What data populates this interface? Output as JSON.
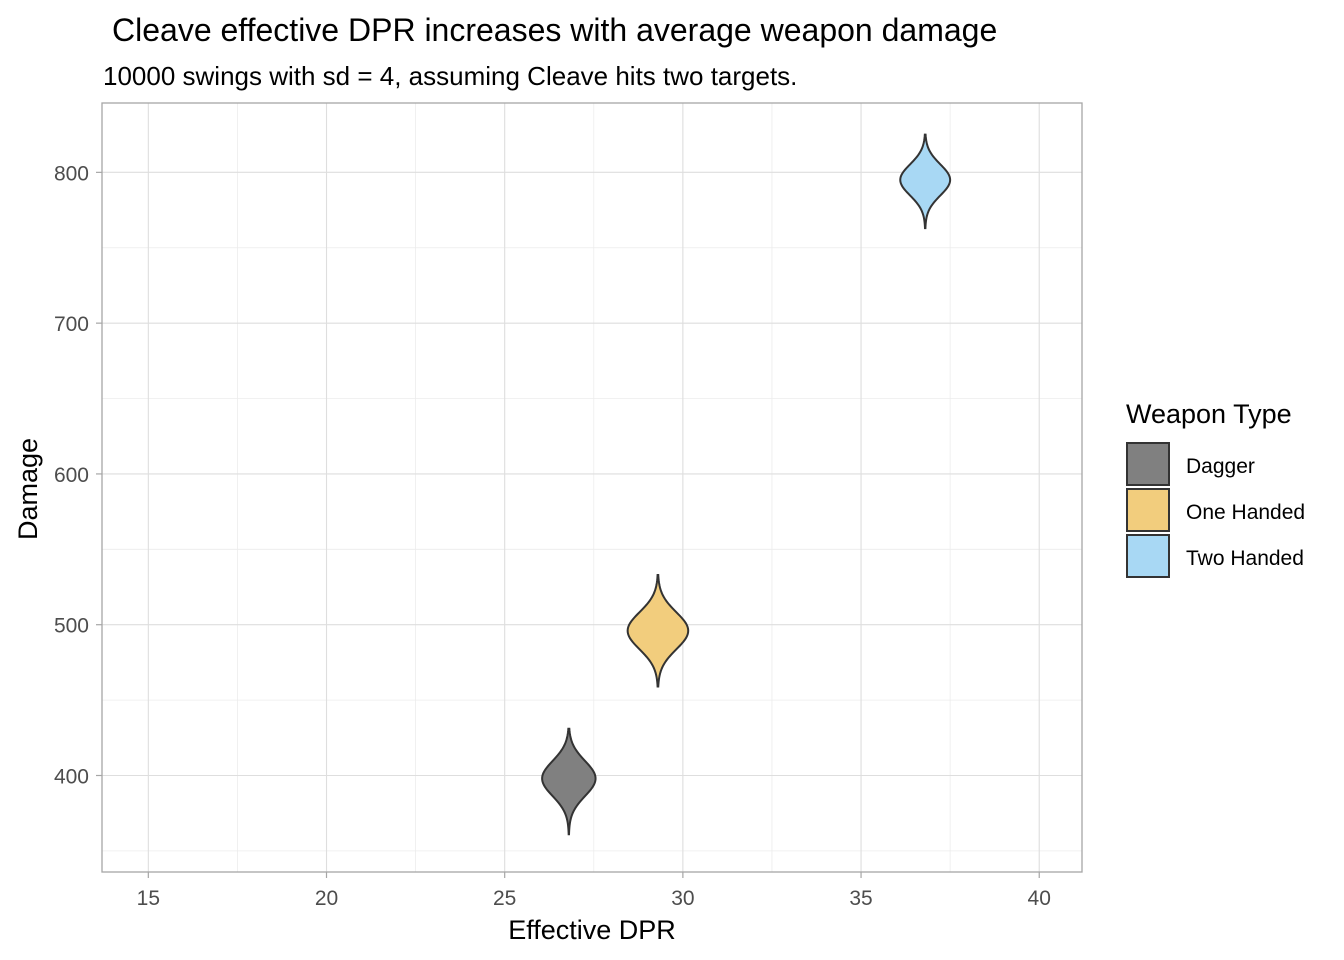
{
  "chart_data": {
    "type": "violin",
    "title": "Cleave effective DPR increases with average weapon damage",
    "subtitle": "10000 swings with sd = 4, assuming Cleave hits two targets.",
    "xlabel": "Effective DPR",
    "ylabel": "Damage",
    "xlim": [
      13.7,
      41.2
    ],
    "ylim": [
      336,
      846
    ],
    "x_ticks": [
      15,
      20,
      25,
      30,
      35,
      40
    ],
    "y_ticks": [
      400,
      500,
      600,
      700,
      800
    ],
    "grid": true,
    "legend": {
      "title": "Weapon Type",
      "position": "right"
    },
    "series": [
      {
        "name": "Dagger",
        "color": "#808080",
        "x": 26.8,
        "center": 398,
        "min": 361,
        "max": 431,
        "halfwidth": 0.75
      },
      {
        "name": "One Handed",
        "color": "#f2cd7d",
        "x": 29.3,
        "center": 496,
        "min": 459,
        "max": 533,
        "halfwidth": 0.85
      },
      {
        "name": "Two Handed",
        "color": "#a8d8f4",
        "x": 36.8,
        "center": 795,
        "min": 763,
        "max": 825,
        "halfwidth": 0.7
      }
    ]
  }
}
